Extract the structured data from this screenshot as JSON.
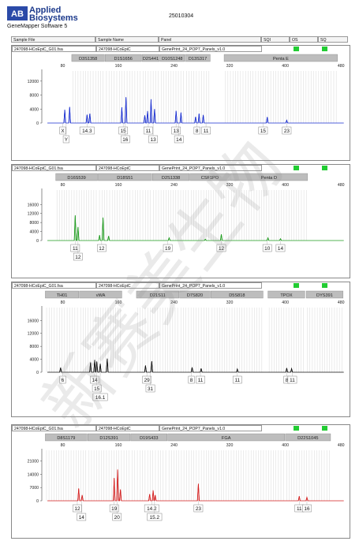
{
  "header": {
    "logo_mark": "AB",
    "company_line1": "Applied",
    "company_line2": "Biosystems",
    "software": "GeneMapper Software 5",
    "report_id": "25010304",
    "col_sample_file": "Sample File",
    "col_sample_name": "Sample Name",
    "col_panel": "Panel",
    "col_sqi": "SQI",
    "col_os": "OS",
    "col_sq": "SQ"
  },
  "watermark": "新赛美生物",
  "chart_data": [
    {
      "type": "line",
      "sample_file": "247098-HCoEpiC_G01.fsa",
      "sample_name": "247098-HCoEpiC",
      "panel": "GenePrint_24_POP7_Panels_v1.0",
      "color": "#1a2fd0",
      "xlim": [
        50,
        490
      ],
      "x_ticks": [
        80,
        160,
        240,
        320,
        400,
        480
      ],
      "ylim": [
        0,
        14000
      ],
      "y_ticks": [
        0,
        4000,
        8000,
        12000
      ],
      "markers": [
        {
          "name": "D3S1358",
          "start": 93,
          "end": 140
        },
        {
          "name": "D1S1656",
          "start": 141,
          "end": 193
        },
        {
          "name": "D2S441",
          "start": 194,
          "end": 219
        },
        {
          "name": "D10S1248",
          "start": 220,
          "end": 255
        },
        {
          "name": "D13S317",
          "start": 256,
          "end": 292
        },
        {
          "name": "Penta E",
          "start": 312,
          "end": 475
        }
      ],
      "peaks": [
        {
          "x": 83,
          "y": 3800
        },
        {
          "x": 90,
          "y": 4600
        },
        {
          "x": 115,
          "y": 2400
        },
        {
          "x": 119,
          "y": 2700
        },
        {
          "x": 165,
          "y": 4500
        },
        {
          "x": 171,
          "y": 7400
        },
        {
          "x": 198,
          "y": 2200
        },
        {
          "x": 202,
          "y": 3400
        },
        {
          "x": 207,
          "y": 6800
        },
        {
          "x": 212,
          "y": 4000
        },
        {
          "x": 243,
          "y": 3500
        },
        {
          "x": 250,
          "y": 3000
        },
        {
          "x": 271,
          "y": 1800
        },
        {
          "x": 276,
          "y": 2700
        },
        {
          "x": 282,
          "y": 2300
        },
        {
          "x": 374,
          "y": 1700
        },
        {
          "x": 402,
          "y": 800
        }
      ],
      "alleles": [
        {
          "x": 80,
          "row": 1,
          "label": "X"
        },
        {
          "x": 85,
          "row": 2,
          "label": "Y"
        },
        {
          "x": 115,
          "row": 1,
          "label": "14.3"
        },
        {
          "x": 167,
          "row": 1,
          "label": "15"
        },
        {
          "x": 170,
          "row": 2,
          "label": "16"
        },
        {
          "x": 203,
          "row": 1,
          "label": "11"
        },
        {
          "x": 210,
          "row": 2,
          "label": "13"
        },
        {
          "x": 243,
          "row": 1,
          "label": "13"
        },
        {
          "x": 247,
          "row": 2,
          "label": "14"
        },
        {
          "x": 273,
          "row": 1,
          "label": "8"
        },
        {
          "x": 286,
          "row": 1,
          "label": "11"
        },
        {
          "x": 368,
          "row": 1,
          "label": "15"
        },
        {
          "x": 402,
          "row": 1,
          "label": "23"
        }
      ]
    },
    {
      "type": "line",
      "sample_file": "247098-HCoEpiC_G01.fsa",
      "sample_name": "247098-HCoEpiC",
      "panel": "GenePrint_24_POP7_Panels_v1.0",
      "color": "#1e9c1e",
      "xlim": [
        50,
        490
      ],
      "x_ticks": [
        80,
        160,
        240,
        320,
        400,
        480
      ],
      "ylim": [
        0,
        21000
      ],
      "y_ticks": [
        0,
        4000,
        8000,
        12000,
        16000
      ],
      "markers": [
        {
          "name": "D16S539",
          "start": 70,
          "end": 130
        },
        {
          "name": "D18S51",
          "start": 131,
          "end": 208
        },
        {
          "name": "D2S1338",
          "start": 209,
          "end": 262
        },
        {
          "name": "CSF1PO",
          "start": 263,
          "end": 320
        },
        {
          "name": "Penta D",
          "start": 321,
          "end": 432
        }
      ],
      "peaks": [
        {
          "x": 98,
          "y": 11200
        },
        {
          "x": 102,
          "y": 6000
        },
        {
          "x": 133,
          "y": 2400
        },
        {
          "x": 138,
          "y": 10200
        },
        {
          "x": 146,
          "y": 2000
        },
        {
          "x": 233,
          "y": 1200
        },
        {
          "x": 285,
          "y": 600
        },
        {
          "x": 308,
          "y": 2800
        },
        {
          "x": 375,
          "y": 1200
        },
        {
          "x": 393,
          "y": 800
        }
      ],
      "alleles": [
        {
          "x": 98,
          "row": 1,
          "label": "11"
        },
        {
          "x": 102,
          "row": 2,
          "label": "12"
        },
        {
          "x": 136,
          "row": 1,
          "label": "12"
        },
        {
          "x": 231,
          "row": 1,
          "label": "19"
        },
        {
          "x": 308,
          "row": 1,
          "label": "12"
        },
        {
          "x": 374,
          "row": 1,
          "label": "10"
        },
        {
          "x": 393,
          "row": 1,
          "label": "14"
        }
      ]
    },
    {
      "type": "line",
      "sample_file": "247098-HCoEpiC_G01.fsa",
      "sample_name": "247098-HCoEpiC",
      "panel": "GenePrint_24_POP7_Panels_v1.0",
      "color": "#111111",
      "xlim": [
        50,
        490
      ],
      "x_ticks": [
        80,
        160,
        240,
        320,
        400,
        480
      ],
      "ylim": [
        0,
        19000
      ],
      "y_ticks": [
        0,
        4000,
        8000,
        12000,
        16000
      ],
      "markers": [
        {
          "name": "TH01",
          "start": 55,
          "end": 103
        },
        {
          "name": "vWA",
          "start": 104,
          "end": 165
        },
        {
          "name": "D21S11",
          "start": 186,
          "end": 247
        },
        {
          "name": "D7S820",
          "start": 248,
          "end": 292
        },
        {
          "name": "D5S818",
          "start": 293,
          "end": 368
        },
        {
          "name": "TPOX",
          "start": 375,
          "end": 428
        },
        {
          "name": "DYS391",
          "start": 430,
          "end": 483
        }
      ],
      "peaks": [
        {
          "x": 77,
          "y": 1400
        },
        {
          "x": 120,
          "y": 3000
        },
        {
          "x": 126,
          "y": 3800
        },
        {
          "x": 129,
          "y": 3300
        },
        {
          "x": 134,
          "y": 2600
        },
        {
          "x": 144,
          "y": 4200
        },
        {
          "x": 199,
          "y": 2100
        },
        {
          "x": 208,
          "y": 3400
        },
        {
          "x": 266,
          "y": 1500
        },
        {
          "x": 279,
          "y": 1200
        },
        {
          "x": 331,
          "y": 1000
        },
        {
          "x": 402,
          "y": 1300
        },
        {
          "x": 409,
          "y": 1100
        }
      ],
      "alleles": [
        {
          "x": 80,
          "row": 1,
          "label": "6"
        },
        {
          "x": 126,
          "row": 1,
          "label": "14"
        },
        {
          "x": 129,
          "row": 2,
          "label": "15"
        },
        {
          "x": 134,
          "row": 3,
          "label": "16.1"
        },
        {
          "x": 201,
          "row": 1,
          "label": "29"
        },
        {
          "x": 206,
          "row": 2,
          "label": "31"
        },
        {
          "x": 265,
          "row": 1,
          "label": "8"
        },
        {
          "x": 278,
          "row": 1,
          "label": "11"
        },
        {
          "x": 331,
          "row": 1,
          "label": "11"
        },
        {
          "x": 402,
          "row": 1,
          "label": "8"
        },
        {
          "x": 410,
          "row": 1,
          "label": "11"
        }
      ]
    },
    {
      "type": "line",
      "sample_file": "247098-HCoEpiC_G01.fsa",
      "sample_name": "247098-HCoEpiC",
      "panel": "GenePrint_24_POP7_Panels_v1.0",
      "color": "#d41e1e",
      "xlim": [
        50,
        490
      ],
      "x_ticks": [
        80,
        160,
        240,
        320,
        400,
        480
      ],
      "ylim": [
        0,
        25000
      ],
      "y_ticks": [
        0,
        7000,
        14000,
        21000
      ],
      "markers": [
        {
          "name": "D8S1179",
          "start": 55,
          "end": 115
        },
        {
          "name": "D12S391",
          "start": 116,
          "end": 177
        },
        {
          "name": "D19S433",
          "start": 178,
          "end": 230
        },
        {
          "name": "FGA",
          "start": 231,
          "end": 399
        },
        {
          "name": "D22S1045",
          "start": 400,
          "end": 465
        }
      ],
      "peaks": [
        {
          "x": 103,
          "y": 6500
        },
        {
          "x": 108,
          "y": 3000
        },
        {
          "x": 154,
          "y": 12000
        },
        {
          "x": 159,
          "y": 16500
        },
        {
          "x": 163,
          "y": 6000
        },
        {
          "x": 205,
          "y": 3500
        },
        {
          "x": 210,
          "y": 5500
        },
        {
          "x": 213,
          "y": 3000
        },
        {
          "x": 275,
          "y": 9000
        },
        {
          "x": 420,
          "y": 2400
        },
        {
          "x": 431,
          "y": 1800
        }
      ],
      "alleles": [
        {
          "x": 101,
          "row": 1,
          "label": "12"
        },
        {
          "x": 107,
          "row": 2,
          "label": "14"
        },
        {
          "x": 154,
          "row": 1,
          "label": "19"
        },
        {
          "x": 158,
          "row": 2,
          "label": "20"
        },
        {
          "x": 208,
          "row": 1,
          "label": "14.2"
        },
        {
          "x": 212,
          "row": 2,
          "label": "15.2"
        },
        {
          "x": 275,
          "row": 1,
          "label": "23"
        },
        {
          "x": 420,
          "row": 1,
          "label": "11"
        },
        {
          "x": 431,
          "row": 1,
          "label": "16"
        }
      ]
    }
  ]
}
